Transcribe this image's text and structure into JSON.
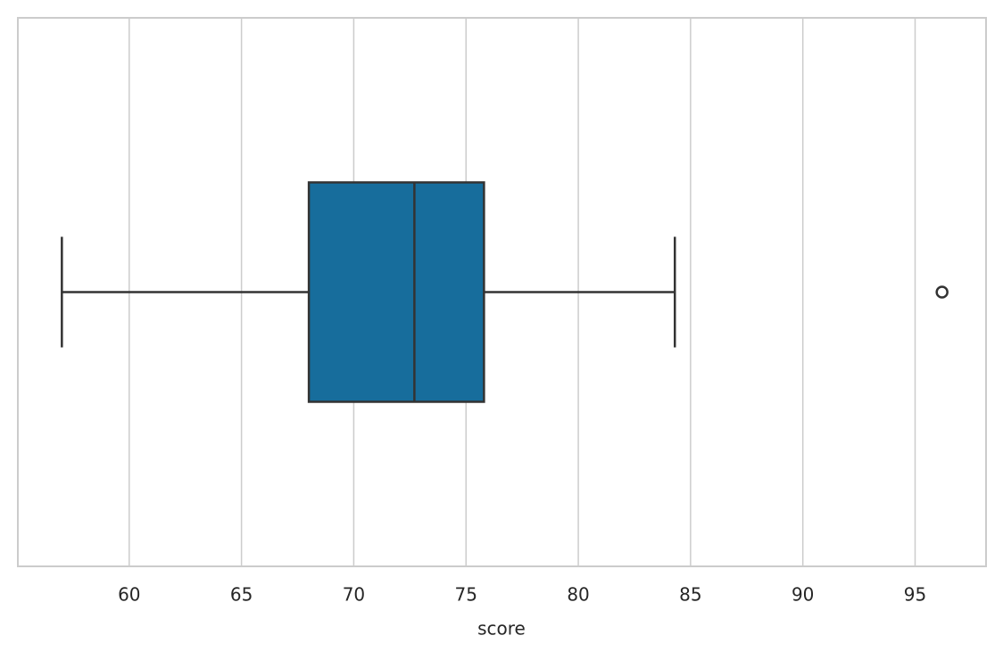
{
  "chart_data": {
    "type": "box",
    "x_label": "score",
    "xlim": [
      55.04,
      98.16
    ],
    "xticks": [
      60,
      65,
      70,
      75,
      80,
      85,
      90,
      95
    ],
    "grid": true,
    "color": "#176d9c",
    "boxes": [
      {
        "low": 57.0,
        "q1": 68.0,
        "median": 72.7,
        "q3": 75.8,
        "high": 84.3,
        "outliers": [
          96.2
        ]
      }
    ]
  }
}
